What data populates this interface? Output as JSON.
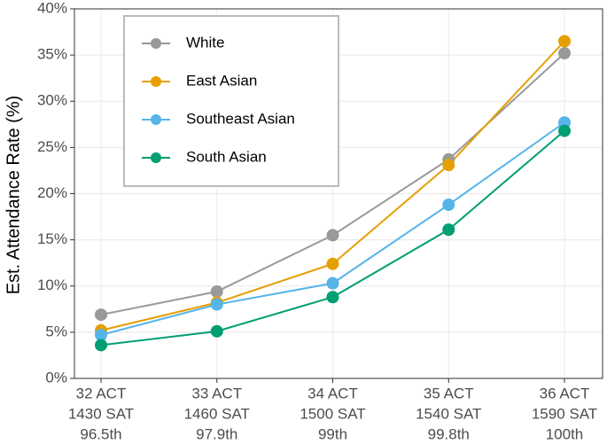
{
  "chart_data": {
    "type": "line",
    "y_label": "Est. Attendance Rate (%)",
    "categories": [
      [
        "32 ACT",
        "1430 SAT",
        "96.5th"
      ],
      [
        "33 ACT",
        "1460 SAT",
        "97.9th"
      ],
      [
        "34 ACT",
        "1500 SAT",
        "99th"
      ],
      [
        "35 ACT",
        "1540 SAT",
        "99.8th"
      ],
      [
        "36 ACT",
        "1590 SAT",
        "100th"
      ]
    ],
    "series": [
      {
        "name": "White",
        "color": "#999999",
        "values": [
          6.9,
          9.4,
          15.5,
          23.7,
          35.2
        ]
      },
      {
        "name": "East Asian",
        "color": "#E69F00",
        "values": [
          5.2,
          8.2,
          12.4,
          23.1,
          36.5
        ]
      },
      {
        "name": "Southeast Asian",
        "color": "#56B4E9",
        "values": [
          4.7,
          8.0,
          10.3,
          18.8,
          27.7
        ]
      },
      {
        "name": "South Asian",
        "color": "#009E73",
        "values": [
          3.6,
          5.1,
          8.8,
          16.1,
          26.8
        ]
      }
    ],
    "ylim": [
      0,
      40
    ],
    "yticks": [
      {
        "value": 0,
        "label": "0%"
      },
      {
        "value": 5,
        "label": "5%"
      },
      {
        "value": 10,
        "label": "10%"
      },
      {
        "value": 15,
        "label": "15%"
      },
      {
        "value": 20,
        "label": "20%"
      },
      {
        "value": 25,
        "label": "25%"
      },
      {
        "value": 30,
        "label": "30%"
      },
      {
        "value": 35,
        "label": "35%"
      },
      {
        "value": 40,
        "label": "40%"
      }
    ],
    "grid": true,
    "legend": "top-left"
  }
}
